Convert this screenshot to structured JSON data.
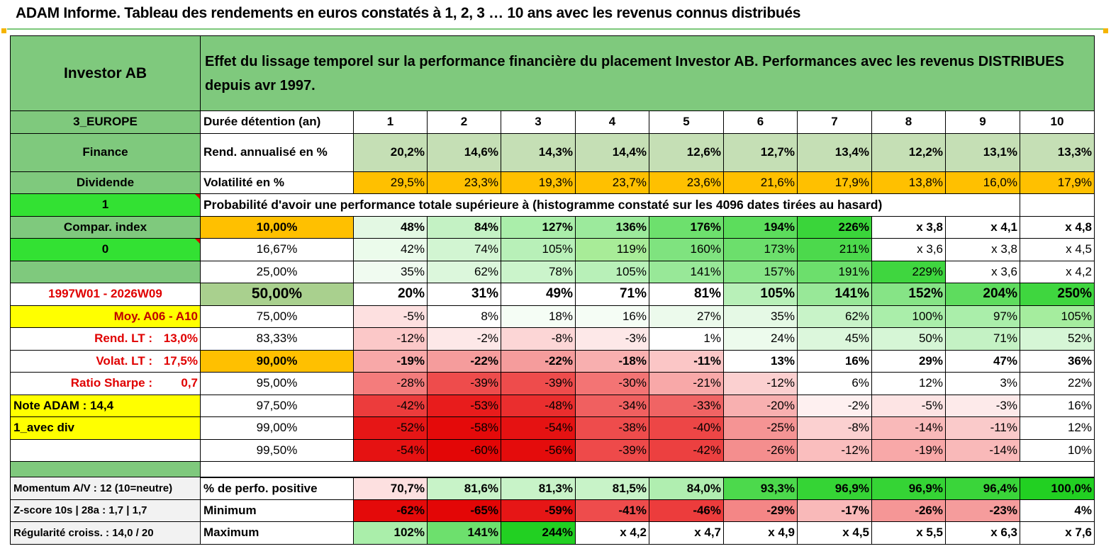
{
  "title": "ADAM Informe. Tableau des rendements en euros constatés à 1, 2, 3 … 10 ans avec les revenus connus distribués",
  "header": {
    "fund": "Investor AB",
    "description": "Effet du lissage temporel sur la performance financière du placement Investor AB. Performances avec les revenus DISTRIBUES depuis avr 1997."
  },
  "side": {
    "region": "3_EUROPE",
    "sector": "Finance",
    "type": "Dividende",
    "flag1": "1",
    "compar": "Compar. index",
    "flag0": "0",
    "period": "1997W01 - 2026W09",
    "moy": "Moy. A06 - A10",
    "rend_lt_label": "Rend. LT :",
    "rend_lt_value": "13,0%",
    "volat_lt_label": "Volat. LT :",
    "volat_lt_value": "17,5%",
    "sharpe_label": "Ratio Sharpe :",
    "sharpe_value": "0,7",
    "note": "Note ADAM : 14,4",
    "div": "1_avec div",
    "momentum": "Momentum A/V : 12 (10=neutre)",
    "zscore": "Z-score 10s | 28a : 1,7 | 1,7",
    "regularite": "Régularité croiss. : 14,0 / 20"
  },
  "labels": {
    "duree": "Durée détention (an)",
    "rend": "Rend. annualisé en %",
    "vol": "Volatilité en %",
    "proba": "Probabilité d'avoir une performance totale supérieure à (histogramme constaté sur les 4096 dates tirées au hasard)",
    "positive": "% de perfo. positive",
    "minimum": "Minimum",
    "maximum": "Maximum"
  },
  "years": [
    "1",
    "2",
    "3",
    "4",
    "5",
    "6",
    "7",
    "8",
    "9",
    "10"
  ],
  "rend": [
    "20,2%",
    "14,6%",
    "14,3%",
    "14,4%",
    "12,6%",
    "12,7%",
    "13,4%",
    "12,2%",
    "13,1%",
    "13,3%"
  ],
  "vol": [
    "29,5%",
    "23,3%",
    "19,3%",
    "23,7%",
    "23,6%",
    "21,6%",
    "17,9%",
    "13,8%",
    "16,0%",
    "17,9%"
  ],
  "prob_rows": [
    {
      "pct": "10,00%",
      "values": [
        "48%",
        "84%",
        "127%",
        "136%",
        "176%",
        "194%",
        "226%",
        "x 3,8",
        "x 4,1",
        "x 4,8"
      ]
    },
    {
      "pct": "16,67%",
      "values": [
        "42%",
        "74%",
        "105%",
        "119%",
        "160%",
        "173%",
        "211%",
        "x 3,6",
        "x 3,8",
        "x 4,5"
      ]
    },
    {
      "pct": "25,00%",
      "values": [
        "35%",
        "62%",
        "78%",
        "105%",
        "141%",
        "157%",
        "191%",
        "229%",
        "x 3,6",
        "x 4,2"
      ]
    },
    {
      "pct": "50,00%",
      "values": [
        "20%",
        "31%",
        "49%",
        "71%",
        "81%",
        "105%",
        "141%",
        "152%",
        "204%",
        "250%"
      ]
    },
    {
      "pct": "75,00%",
      "values": [
        "-5%",
        "8%",
        "18%",
        "16%",
        "27%",
        "35%",
        "62%",
        "100%",
        "97%",
        "105%"
      ]
    },
    {
      "pct": "83,33%",
      "values": [
        "-12%",
        "-2%",
        "-8%",
        "-3%",
        "1%",
        "24%",
        "45%",
        "50%",
        "71%",
        "52%"
      ]
    },
    {
      "pct": "90,00%",
      "values": [
        "-19%",
        "-22%",
        "-22%",
        "-18%",
        "-11%",
        "13%",
        "16%",
        "29%",
        "47%",
        "36%"
      ]
    },
    {
      "pct": "95,00%",
      "values": [
        "-28%",
        "-39%",
        "-39%",
        "-30%",
        "-21%",
        "-12%",
        "6%",
        "12%",
        "3%",
        "22%"
      ]
    },
    {
      "pct": "97,50%",
      "values": [
        "-42%",
        "-53%",
        "-48%",
        "-34%",
        "-33%",
        "-20%",
        "-2%",
        "-5%",
        "-3%",
        "16%"
      ]
    },
    {
      "pct": "99,00%",
      "values": [
        "-52%",
        "-58%",
        "-54%",
        "-38%",
        "-40%",
        "-25%",
        "-8%",
        "-14%",
        "-11%",
        "12%"
      ]
    },
    {
      "pct": "99,50%",
      "values": [
        "-54%",
        "-60%",
        "-56%",
        "-39%",
        "-42%",
        "-26%",
        "-12%",
        "-19%",
        "-14%",
        "10%"
      ]
    }
  ],
  "positive": [
    "70,7%",
    "81,6%",
    "81,3%",
    "81,5%",
    "84,0%",
    "93,3%",
    "96,9%",
    "96,9%",
    "96,4%",
    "100,0%"
  ],
  "minimum": [
    "-62%",
    "-65%",
    "-59%",
    "-41%",
    "-46%",
    "-29%",
    "-17%",
    "-26%",
    "-23%",
    "4%"
  ],
  "maximum": [
    "102%",
    "141%",
    "244%",
    "x 4,2",
    "x 4,7",
    "x 4,9",
    "x 4,5",
    "x 5,5",
    "x 6,3",
    "x 7,6"
  ],
  "colors": {
    "prob": [
      [
        "#e3f8e3",
        "#c4f2c4",
        "#aaeeaa",
        "#9cea9c",
        "#6de06d",
        "#5cdd5c",
        "#3ad53a",
        "#ffffff",
        "#ffffff",
        "#ffffff"
      ],
      [
        "#ebfbeb",
        "#d2f5d2",
        "#b8f0b8",
        "#a8ec98",
        "#7fe37f",
        "#6cdf6c",
        "#4cd94c",
        "#ffffff",
        "#ffffff",
        "#ffffff"
      ],
      [
        "#f0fbf0",
        "#dcf7dc",
        "#cbf4cb",
        "#b8f0b8",
        "#98e898",
        "#86e486",
        "#6cdf6c",
        "#3fd63f",
        "#ffffff",
        "#ffffff"
      ],
      [
        "#ffffff",
        "#ffffff",
        "#ffffff",
        "#ffffff",
        "#ffffff",
        "#b8f0b8",
        "#98e898",
        "#86e486",
        "#5edc5e",
        "#3fd63f"
      ],
      [
        "#fde0e0",
        "#ffffff",
        "#f5fdf5",
        "#f5fdf5",
        "#ecfaec",
        "#e5f9e5",
        "#c8f3c8",
        "#aaeeaa",
        "#aaeeaa",
        "#a5ed9e"
      ],
      [
        "#fbc8c8",
        "#fde8e8",
        "#fcd6d6",
        "#fde8e8",
        "#ffffff",
        "#edfbed",
        "#dcf7dc",
        "#d6f6d6",
        "#c4f2c4",
        "#d6f6d6"
      ],
      [
        "#f8a8a8",
        "#f59c9c",
        "#f59c9c",
        "#f8afaf",
        "#fbc6c6",
        "#ffffff",
        "#ffffff",
        "#ffffff",
        "#ffffff",
        "#ffffff"
      ],
      [
        "#f47c7c",
        "#ee4c4c",
        "#ee4c4c",
        "#f37474",
        "#f8a8a8",
        "#fbd0d0",
        "#ffffff",
        "#ffffff",
        "#ffffff",
        "#ffffff"
      ],
      [
        "#ec3c3c",
        "#e81c1c",
        "#ea2e2e",
        "#f06060",
        "#f06464",
        "#f8b0b0",
        "#fef0f0",
        "#fde4e4",
        "#fdeaea",
        "#ffffff"
      ],
      [
        "#e61616",
        "#e40a0a",
        "#e51212",
        "#ee4c4c",
        "#ed4646",
        "#f59494",
        "#fbd0d0",
        "#f9b9b9",
        "#facaca",
        "#ffffff"
      ],
      [
        "#e51212",
        "#e30606",
        "#e40c0c",
        "#ee4a4a",
        "#ec4040",
        "#f48e8e",
        "#fabebe",
        "#f8a8a8",
        "#f9b9b9",
        "#ffffff"
      ]
    ],
    "positive": [
      "#fde0e0",
      "#c8f3c8",
      "#c8f3c8",
      "#c8f3c8",
      "#b0eeb0",
      "#4cd94c",
      "#35d435",
      "#35d435",
      "#3ad53a",
      "#22d022"
    ],
    "minimum": [
      "#e40a0a",
      "#e30606",
      "#e61616",
      "#ee4c4c",
      "#ec3c3c",
      "#f48686",
      "#f9b9b9",
      "#f59696",
      "#f59c9c",
      "#ffffff"
    ],
    "maximum": [
      "#aaeeaa",
      "#6de06d",
      "#22d022",
      "#ffffff",
      "#ffffff",
      "#ffffff",
      "#ffffff",
      "#ffffff",
      "#ffffff",
      "#ffffff"
    ]
  }
}
